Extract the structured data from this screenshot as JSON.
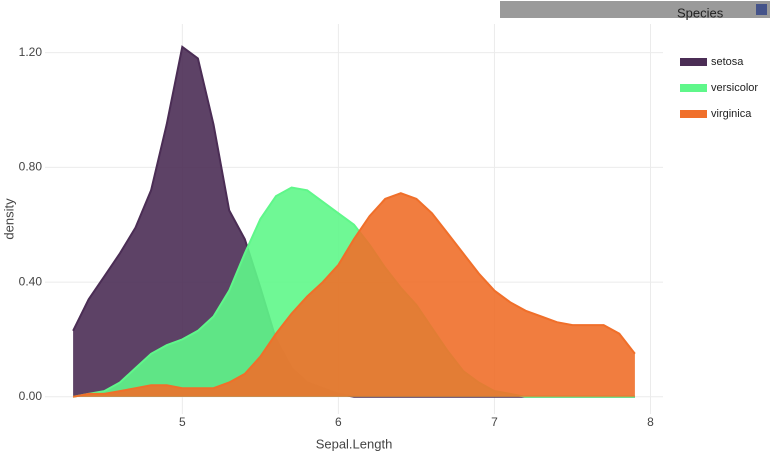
{
  "chart_data": {
    "type": "area",
    "x_label": "Sepal.Length",
    "y_label": "density",
    "legend_title": "Species",
    "x": [
      4.3,
      4.4,
      4.5,
      4.6,
      4.7,
      4.8,
      4.9,
      5.0,
      5.1,
      5.2,
      5.3,
      5.4,
      5.5,
      5.6,
      5.7,
      5.8,
      5.9,
      6.0,
      6.1,
      6.2,
      6.3,
      6.4,
      6.5,
      6.6,
      6.7,
      6.8,
      6.9,
      7.0,
      7.1,
      7.2,
      7.3,
      7.4,
      7.5,
      7.6,
      7.7,
      7.8,
      7.9
    ],
    "series": [
      {
        "name": "setosa",
        "color": "#4b2d55",
        "values": [
          0.23,
          0.34,
          0.42,
          0.5,
          0.59,
          0.72,
          0.95,
          1.22,
          1.18,
          0.95,
          0.65,
          0.55,
          0.38,
          0.2,
          0.1,
          0.05,
          0.03,
          0.01,
          0,
          0,
          0,
          0,
          0,
          0,
          0,
          0,
          0,
          0,
          0,
          0,
          0,
          0,
          0,
          0,
          0,
          0,
          0
        ]
      },
      {
        "name": "versicolor",
        "color": "#5ff78a",
        "values": [
          0,
          0.01,
          0.02,
          0.05,
          0.1,
          0.15,
          0.18,
          0.2,
          0.23,
          0.28,
          0.37,
          0.5,
          0.62,
          0.7,
          0.73,
          0.72,
          0.68,
          0.64,
          0.6,
          0.53,
          0.45,
          0.38,
          0.32,
          0.24,
          0.16,
          0.09,
          0.05,
          0.02,
          0.01,
          0,
          0,
          0,
          0,
          0,
          0,
          0,
          0
        ]
      },
      {
        "name": "virginica",
        "color": "#f06f2a",
        "values": [
          0,
          0.01,
          0.01,
          0.02,
          0.03,
          0.04,
          0.04,
          0.03,
          0.03,
          0.03,
          0.05,
          0.08,
          0.14,
          0.22,
          0.29,
          0.35,
          0.4,
          0.46,
          0.55,
          0.63,
          0.69,
          0.71,
          0.69,
          0.64,
          0.57,
          0.5,
          0.43,
          0.37,
          0.33,
          0.3,
          0.28,
          0.26,
          0.25,
          0.25,
          0.25,
          0.22,
          0.15
        ]
      }
    ],
    "xlim": [
      4.12,
      8.08
    ],
    "ylim": [
      -0.06,
      1.3
    ],
    "xticks": [
      5,
      6,
      7,
      8
    ],
    "yticks": [
      {
        "value": 0,
        "label": "0.00"
      },
      {
        "value": 0.4,
        "label": "0.40"
      },
      {
        "value": 0.8,
        "label": "0.80"
      },
      {
        "value": 1.2,
        "label": "1.20"
      }
    ],
    "grid": true,
    "legend": "right"
  }
}
